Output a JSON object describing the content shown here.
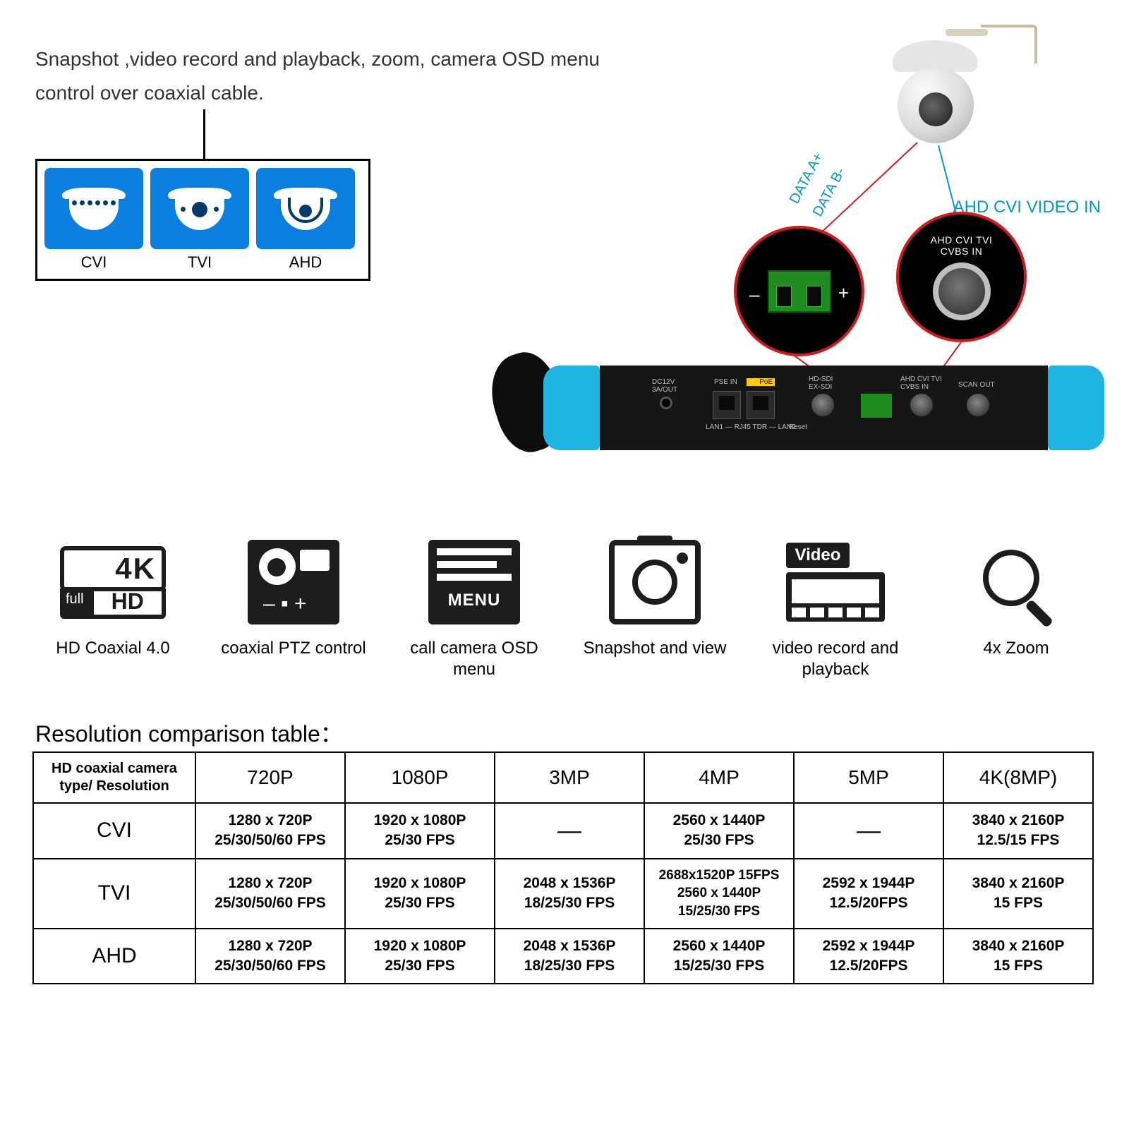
{
  "description": "Snapshot ,video record and playback, zoom, camera OSD menu control over coaxial cable.",
  "camera_types": [
    {
      "label": "CVI"
    },
    {
      "label": "TVI"
    },
    {
      "label": "AHD"
    }
  ],
  "connection_labels": {
    "data_a": "DATA A+",
    "data_b": "DATA B-",
    "video_in": "AHD CVI VIDEO IN",
    "circ_right_l1": "AHD CVI TVI",
    "circ_right_l2": "CVBS IN"
  },
  "tester_labels": {
    "dc": "DC12V\n3A/OUT",
    "pse": "PSE IN",
    "poe": "⚡ PoE",
    "lan": "LAN1 — RJ45 TDR — LAN2",
    "reset": "Reset",
    "hdsdi": "HD-SDI\nEX-SDI",
    "cvbs": "AHD CVI TVI\nCVBS IN",
    "scan": "SCAN OUT"
  },
  "features": [
    {
      "id": "hd4k",
      "caption": "HD Coaxial 4.0"
    },
    {
      "id": "ptz",
      "caption": "coaxial PTZ control"
    },
    {
      "id": "menu",
      "caption": "call camera OSD menu"
    },
    {
      "id": "snap",
      "caption": "Snapshot and view"
    },
    {
      "id": "video",
      "caption": "video record and playback"
    },
    {
      "id": "zoom",
      "caption": "4x Zoom"
    }
  ],
  "feature_icon_text": {
    "hd_4k": "4K",
    "hd_full": "full",
    "hd_hd": "HD",
    "menu": "MENU",
    "video": "Video"
  },
  "table": {
    "title": "Resolution comparison table：",
    "header": [
      "HD coaxial camera type/ Resolution",
      "720P",
      "1080P",
      "3MP",
      "4MP",
      "5MP",
      "4K(8MP)"
    ],
    "rows": [
      {
        "name": "CVI",
        "cells": [
          [
            "1280 x 720P",
            "25/30/50/60 FPS"
          ],
          [
            "1920 x 1080P",
            "25/30 FPS"
          ],
          [
            "—"
          ],
          [
            "2560 x 1440P",
            "25/30 FPS"
          ],
          [
            "—"
          ],
          [
            "3840 x 2160P",
            "12.5/15 FPS"
          ]
        ]
      },
      {
        "name": "TVI",
        "cells": [
          [
            "1280 x 720P",
            "25/30/50/60 FPS"
          ],
          [
            "1920 x 1080P",
            "25/30 FPS"
          ],
          [
            "2048 x 1536P",
            "18/25/30 FPS"
          ],
          [
            "2688x1520P 15FPS",
            "2560 x 1440P",
            "15/25/30 FPS"
          ],
          [
            "2592 x 1944P",
            "12.5/20FPS"
          ],
          [
            "3840 x 2160P",
            "15 FPS"
          ]
        ]
      },
      {
        "name": "AHD",
        "cells": [
          [
            "1280 x 720P",
            "25/30/50/60 FPS"
          ],
          [
            "1920 x 1080P",
            "25/30 FPS"
          ],
          [
            "2048 x 1536P",
            "18/25/30 FPS"
          ],
          [
            "2560 x 1440P",
            "15/25/30 FPS"
          ],
          [
            "2592 x 1944P",
            "12.5/20FPS"
          ],
          [
            "3840 x 2160P",
            "15 FPS"
          ]
        ]
      }
    ]
  },
  "colors": {
    "tile_bg": "#0a7fe0",
    "accent_cyan": "#009bbf",
    "accent_red": "#d01a1f",
    "tester_blue": "#1eb6e0",
    "terminal_green": "#1e8c1e"
  }
}
